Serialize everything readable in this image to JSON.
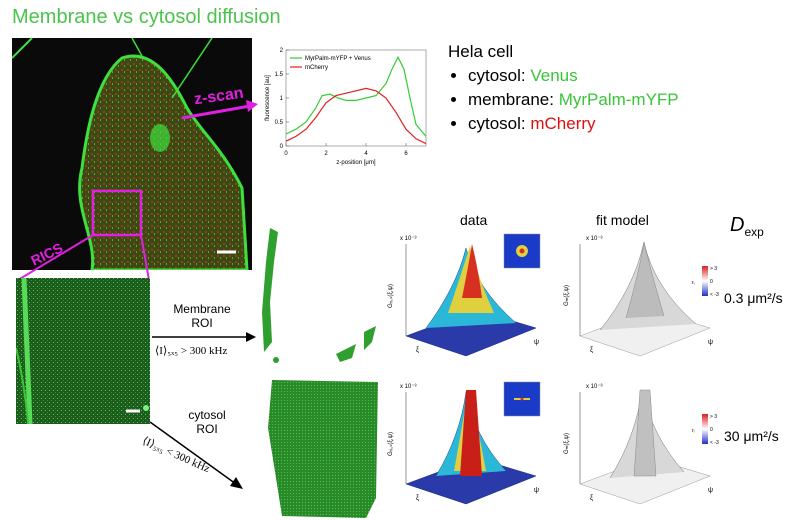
{
  "title": "Membrane vs cytosol diffusion",
  "cell_labels": {
    "zscan": "z-scan",
    "rics": "RICS"
  },
  "hela": {
    "heading": "Hela cell",
    "items": [
      {
        "prefix": "cytosol: ",
        "name": "Venus",
        "color": "#39c439"
      },
      {
        "prefix": "membrane: ",
        "name": "MyrPalm-mYFP",
        "color": "#39c439"
      },
      {
        "prefix": "cytosol: ",
        "name": "mCherry",
        "color": "#e01010"
      }
    ]
  },
  "roi": {
    "membrane_l1": "Membrane",
    "membrane_l2": "ROI",
    "membrane_cond": "⟨I⟩₅ₓ₅ > 300 kHz",
    "cytosol_l1": "cytosol",
    "cytosol_l2": "ROI",
    "cytosol_cond": "⟨I⟩₅ₓ₅ < 300 kHz"
  },
  "columns": {
    "data": "data",
    "fit": "fit model",
    "dexp": "D",
    "dexp_sub": "exp"
  },
  "dvalues": {
    "top": "0.3 μm²/s",
    "bottom": "30 μm²/s"
  },
  "surface_labels": {
    "scale_top_left": "x 10⁻³",
    "scale_top_right": "x 10⁻³",
    "scale_bottom_left": "x 10⁻³",
    "scale_bottom_right": "x 10⁻³",
    "data_z": "Gᵣᵢ꜀ₛ(ξ,ψ)",
    "fit_z": "Gₘ(ξ,ψ)",
    "axis_xi": "ξ",
    "axis_psi": "ψ",
    "cbar_hi": "> 3",
    "cbar_mid": "0",
    "cbar_lo": "< -3",
    "cbar_lbl": "rᵢ"
  },
  "chart_data": {
    "type": "line",
    "xlabel": "z-position [μm]",
    "ylabel": "fluorescence [au]",
    "xlim": [
      0,
      7
    ],
    "ylim": [
      0,
      2
    ],
    "xticks": [
      "0",
      "2",
      "4",
      "6"
    ],
    "yticks": [
      "0",
      "0.5",
      "1",
      "1.5",
      "2"
    ],
    "legend_position": "top-left",
    "series": [
      {
        "name": "MyrPalm-mYFP + Venus",
        "color": "#33cc33",
        "x": [
          0,
          0.5,
          1,
          1.5,
          1.8,
          2.2,
          2.6,
          3.0,
          3.5,
          4.0,
          4.5,
          5.0,
          5.3,
          5.6,
          5.9,
          6.2,
          6.5,
          7.0
        ],
        "y": [
          0.25,
          0.35,
          0.5,
          0.8,
          1.05,
          1.08,
          1.0,
          0.95,
          0.95,
          1.0,
          1.05,
          1.3,
          1.6,
          1.85,
          1.6,
          1.0,
          0.45,
          0.2
        ]
      },
      {
        "name": "mCherry",
        "color": "#e02020",
        "x": [
          0,
          0.5,
          1,
          1.5,
          2.0,
          2.5,
          3.0,
          3.5,
          4.0,
          4.5,
          5.0,
          5.5,
          6.0,
          6.5,
          7.0
        ],
        "y": [
          0.1,
          0.2,
          0.35,
          0.6,
          0.9,
          1.05,
          1.1,
          1.15,
          1.2,
          1.15,
          1.0,
          0.7,
          0.35,
          0.15,
          0.05
        ]
      }
    ]
  }
}
